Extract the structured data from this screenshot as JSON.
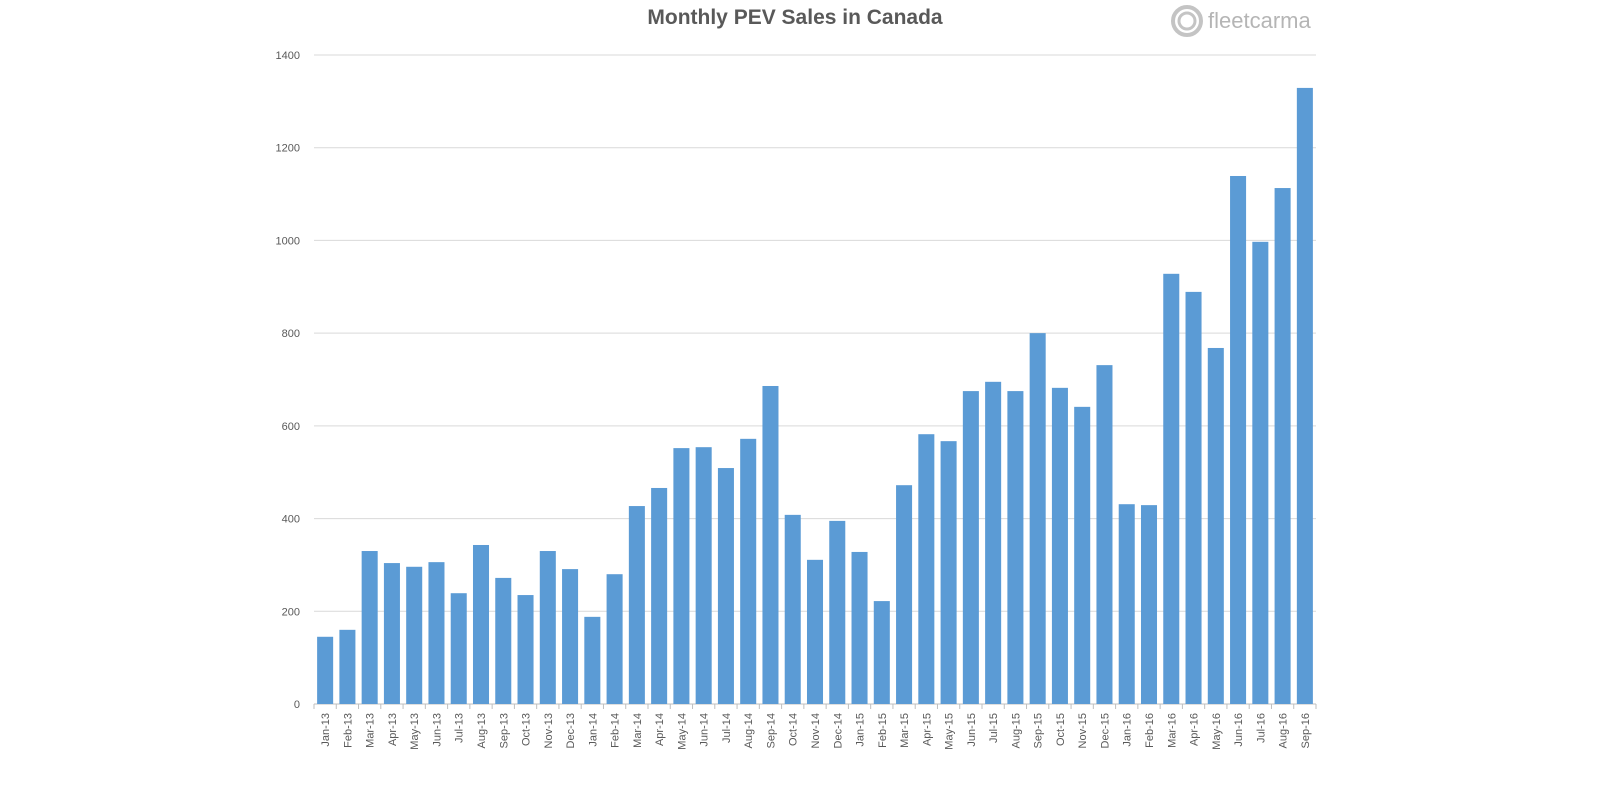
{
  "logo": {
    "text": "fleetcarma"
  },
  "chart_data": {
    "type": "bar",
    "title": "Monthly PEV Sales in Canada",
    "xlabel": "",
    "ylabel": "",
    "ylim": [
      0,
      1400
    ],
    "yticks": [
      0,
      200,
      400,
      600,
      800,
      1000,
      1200,
      1400
    ],
    "grid": true,
    "bar_color": "#5b9bd5",
    "categories": [
      "Jan-13",
      "Feb-13",
      "Mar-13",
      "Apr-13",
      "May-13",
      "Jun-13",
      "Jul-13",
      "Aug-13",
      "Sep-13",
      "Oct-13",
      "Nov-13",
      "Dec-13",
      "Jan-14",
      "Feb-14",
      "Mar-14",
      "Apr-14",
      "May-14",
      "Jun-14",
      "Jul-14",
      "Aug-14",
      "Sep-14",
      "Oct-14",
      "Nov-14",
      "Dec-14",
      "Jan-15",
      "Feb-15",
      "Mar-15",
      "Apr-15",
      "May-15",
      "Jun-15",
      "Jul-15",
      "Aug-15",
      "Sep-15",
      "Oct-15",
      "Nov-15",
      "Dec-15",
      "Jan-16",
      "Feb-16",
      "Mar-16",
      "Apr-16",
      "May-16",
      "Jun-16",
      "Jul-16",
      "Aug-16",
      "Sep-16"
    ],
    "values": [
      145,
      160,
      330,
      304,
      296,
      306,
      239,
      343,
      272,
      235,
      330,
      291,
      188,
      280,
      427,
      466,
      552,
      554,
      509,
      572,
      686,
      408,
      311,
      395,
      328,
      222,
      472,
      582,
      567,
      675,
      695,
      675,
      800,
      682,
      641,
      731,
      431,
      429,
      928,
      889,
      768,
      1139,
      997,
      1113,
      1329
    ]
  }
}
